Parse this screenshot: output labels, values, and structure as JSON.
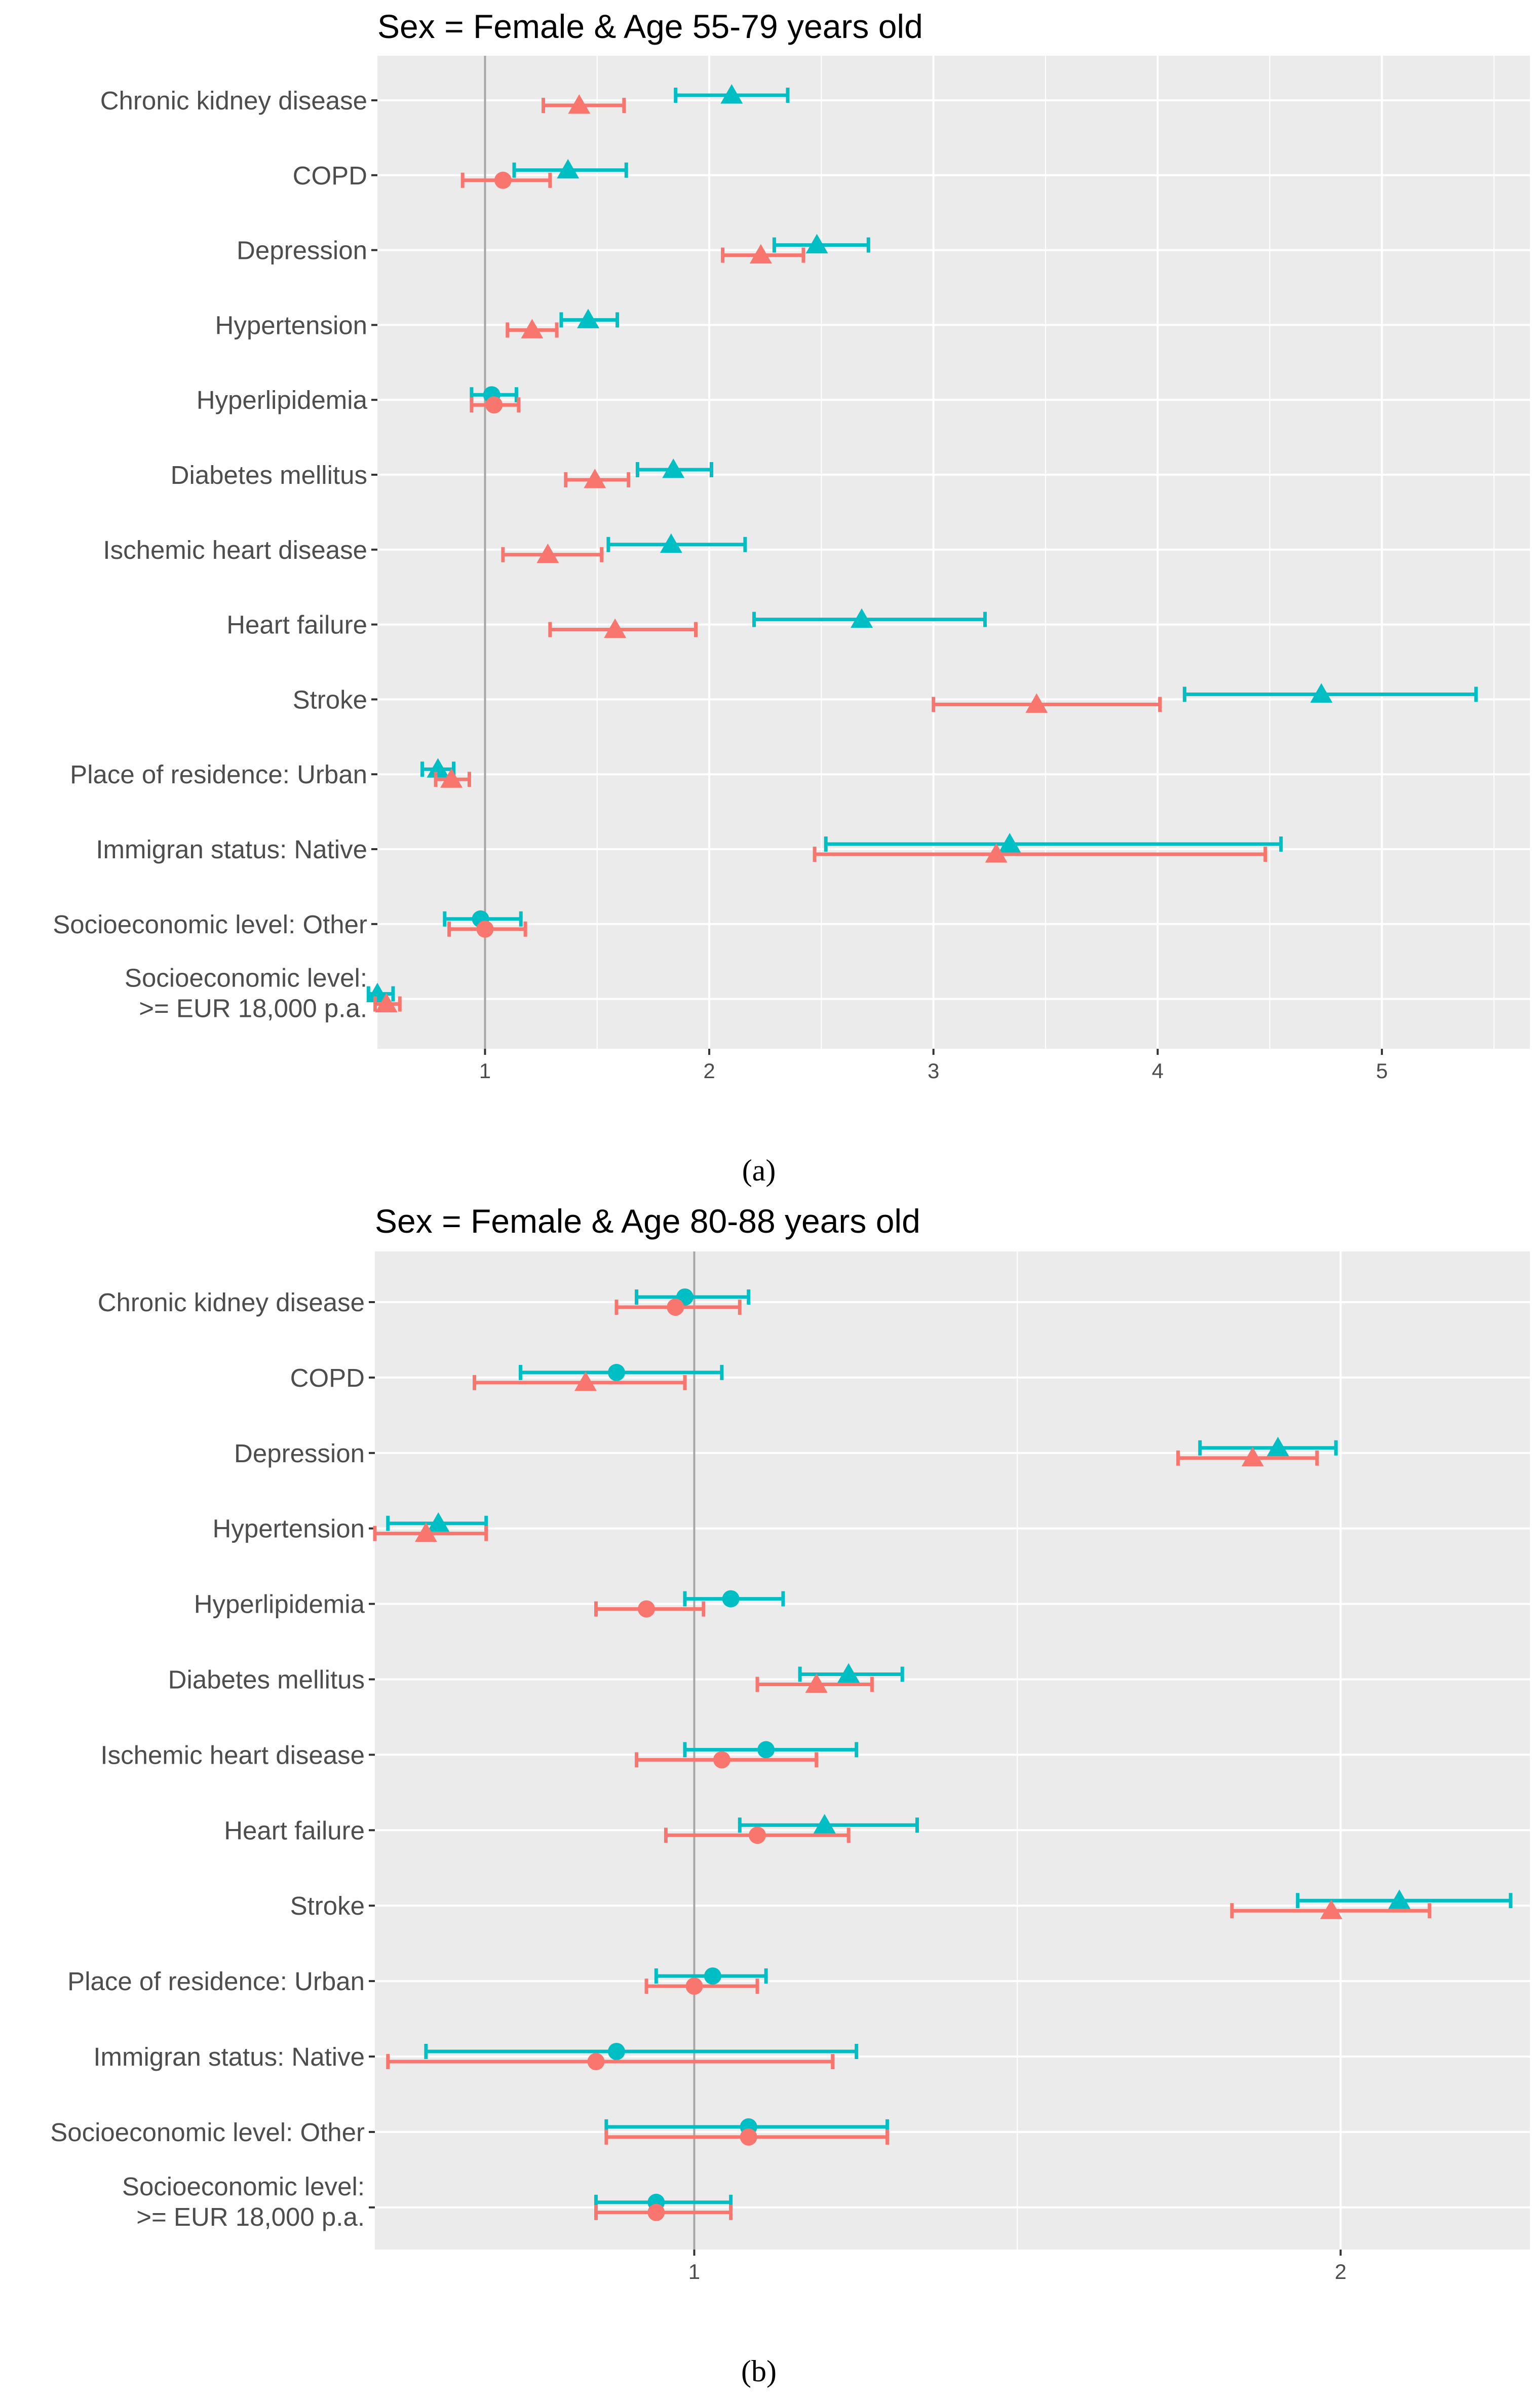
{
  "colors": {
    "series_a": "#F8766D",
    "series_b": "#00BFC4",
    "panel_bg": "#EBEBEB",
    "grid": "#FFFFFF",
    "reference_line": "#A6A6A6"
  },
  "chart_data": [
    {
      "type": "forest",
      "title": "Sex = Female & Age 55-79 years old",
      "caption": "(a)",
      "x_scale": "linear",
      "xlim": [
        0.52,
        5.66
      ],
      "x_ticks": [
        1,
        2,
        3,
        4,
        5
      ],
      "x_tick_labels": [
        "1",
        "2",
        "3",
        "4",
        "5"
      ],
      "reference_value": 1,
      "categories": [
        "Chronic kidney disease",
        "COPD",
        "Depression",
        "Hypertension",
        "Hyperlipidemia",
        "Diabetes mellitus",
        "Ischemic heart disease",
        "Heart failure",
        "Stroke",
        "Place of residence: Urban",
        "Immigran status: Native",
        "Socioeconomic level: Other",
        "Socioeconomic level:\n>= EUR 18,000 p.a."
      ],
      "series": [
        {
          "name": "cyan",
          "color": "#00BFC4",
          "estimate": [
            2.1,
            1.37,
            2.48,
            1.46,
            1.03,
            1.84,
            1.83,
            2.68,
            4.73,
            0.79,
            3.34,
            0.98,
            0.52
          ],
          "lower": [
            1.85,
            1.13,
            2.29,
            1.34,
            0.94,
            1.68,
            1.55,
            2.2,
            4.12,
            0.72,
            2.52,
            0.82,
            0.48
          ],
          "upper": [
            2.35,
            1.63,
            2.71,
            1.59,
            1.14,
            2.01,
            2.16,
            3.23,
            5.42,
            0.86,
            4.55,
            1.16,
            0.59
          ],
          "marker": [
            "triangle",
            "triangle",
            "triangle",
            "triangle",
            "circle",
            "triangle",
            "triangle",
            "triangle",
            "triangle",
            "triangle",
            "triangle",
            "circle",
            "triangle"
          ]
        },
        {
          "name": "salmon",
          "color": "#F8766D",
          "estimate": [
            1.42,
            1.08,
            2.23,
            1.21,
            1.04,
            1.49,
            1.28,
            1.58,
            3.46,
            0.85,
            3.28,
            1.0,
            0.56
          ],
          "lower": [
            1.26,
            0.9,
            2.06,
            1.1,
            0.94,
            1.36,
            1.08,
            1.29,
            3.0,
            0.78,
            2.47,
            0.84,
            0.51
          ],
          "upper": [
            1.62,
            1.29,
            2.42,
            1.32,
            1.15,
            1.64,
            1.52,
            1.94,
            4.01,
            0.93,
            4.48,
            1.18,
            0.62
          ],
          "marker": [
            "triangle",
            "circle",
            "triangle",
            "triangle",
            "circle",
            "triangle",
            "triangle",
            "triangle",
            "triangle",
            "triangle",
            "triangle",
            "circle",
            "triangle"
          ]
        }
      ]
    },
    {
      "type": "forest",
      "title": "Sex = Female & Age 80-88 years old",
      "caption": "(b)",
      "x_scale": "log",
      "xlim": [
        0.71,
        2.45
      ],
      "x_ticks": [
        1,
        2
      ],
      "x_tick_labels": [
        "1",
        "2"
      ],
      "minor_ticks": [
        0.707,
        1.414
      ],
      "reference_value": 1,
      "categories": [
        "Chronic kidney disease",
        "COPD",
        "Depression",
        "Hypertension",
        "Hyperlipidemia",
        "Diabetes mellitus",
        "Ischemic heart disease",
        "Heart failure",
        "Stroke",
        "Place of residence: Urban",
        "Immigran status: Native",
        "Socioeconomic level: Other",
        "Socioeconomic level:\n>= EUR 18,000 p.a."
      ],
      "series": [
        {
          "name": "cyan",
          "color": "#00BFC4",
          "estimate": [
            0.99,
            0.92,
            1.87,
            0.76,
            1.04,
            1.18,
            1.08,
            1.15,
            2.13,
            1.02,
            0.92,
            1.06,
            0.96
          ],
          "lower": [
            0.94,
            0.83,
            1.72,
            0.72,
            0.99,
            1.12,
            0.99,
            1.05,
            1.91,
            0.96,
            0.75,
            0.91,
            0.9
          ],
          "upper": [
            1.06,
            1.03,
            1.99,
            0.8,
            1.1,
            1.25,
            1.19,
            1.27,
            2.4,
            1.08,
            1.19,
            1.23,
            1.04
          ],
          "marker": [
            "circle",
            "circle",
            "triangle",
            "triangle",
            "circle",
            "triangle",
            "circle",
            "triangle",
            "triangle",
            "circle",
            "circle",
            "circle",
            "circle"
          ]
        },
        {
          "name": "salmon",
          "color": "#F8766D",
          "estimate": [
            0.98,
            0.89,
            1.82,
            0.75,
            0.95,
            1.14,
            1.03,
            1.07,
            1.98,
            1.0,
            0.9,
            1.06,
            0.96
          ],
          "lower": [
            0.92,
            0.79,
            1.68,
            0.71,
            0.9,
            1.07,
            0.94,
            0.97,
            1.78,
            0.95,
            0.72,
            0.91,
            0.9
          ],
          "upper": [
            1.05,
            0.99,
            1.95,
            0.8,
            1.01,
            1.21,
            1.14,
            1.18,
            2.2,
            1.07,
            1.16,
            1.23,
            1.04
          ],
          "marker": [
            "circle",
            "triangle",
            "triangle",
            "triangle",
            "circle",
            "triangle",
            "circle",
            "circle",
            "triangle",
            "circle",
            "circle",
            "circle",
            "circle"
          ]
        }
      ]
    }
  ]
}
